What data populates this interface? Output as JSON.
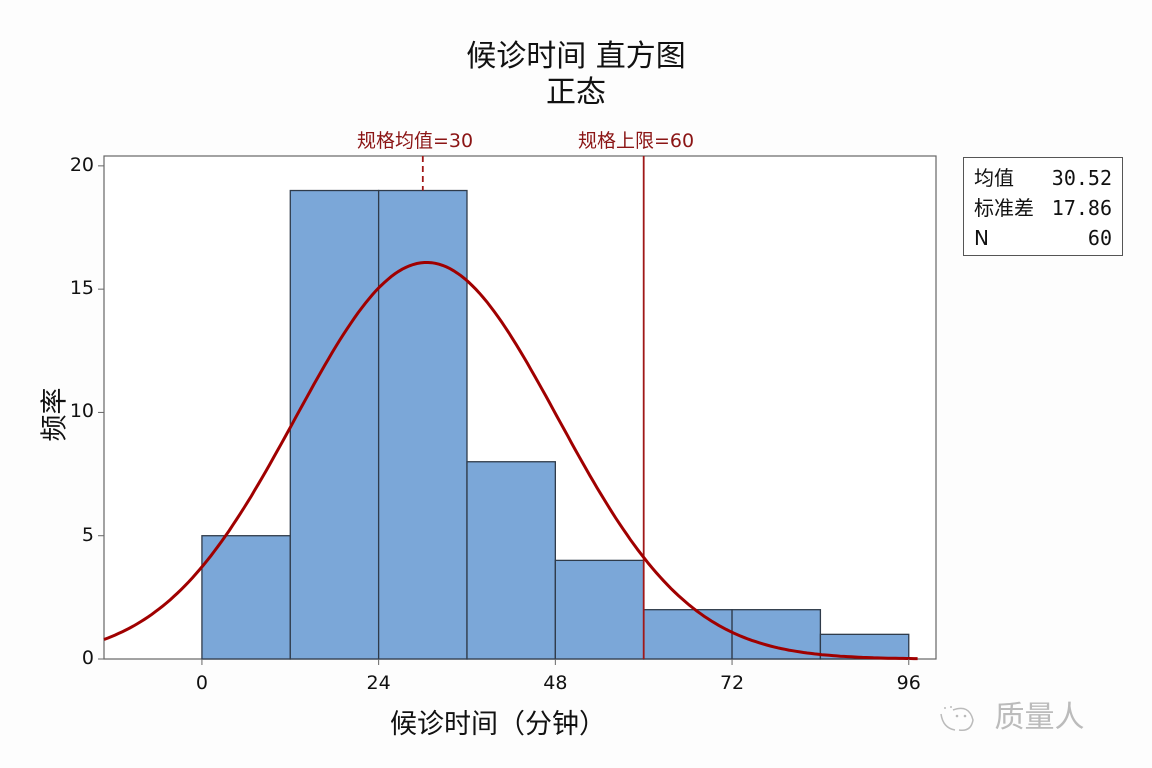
{
  "header": {
    "title": "候诊时间 直方图",
    "subtitle": "正态"
  },
  "spec_lines": [
    {
      "label": "规格均值=30",
      "value": 30,
      "style": "dashed"
    },
    {
      "label": "规格上限=60",
      "value": 60,
      "style": "solid"
    }
  ],
  "axes": {
    "xlabel": "候诊时间（分钟）",
    "ylabel": "频率",
    "xticks": [
      "0",
      "24",
      "48",
      "72",
      "96"
    ],
    "yticks": [
      "0",
      "5",
      "10",
      "15",
      "20"
    ]
  },
  "stats": {
    "rows": [
      {
        "key": "均值",
        "value": "30.52"
      },
      {
        "key": "标准差",
        "value": "17.86"
      },
      {
        "key": "N",
        "value": "60"
      }
    ]
  },
  "watermark": {
    "text": "质量人"
  },
  "colors": {
    "bar_fill": "#7ba7d8",
    "bar_edge": "#2f3b4a",
    "curve": "#a00000",
    "spec_line": "#a01818",
    "frame": "#666666"
  },
  "chart_data": {
    "type": "bar",
    "title": "候诊时间 直方图",
    "subtitle": "正态",
    "xlabel": "候诊时间（分钟）",
    "ylabel": "频率",
    "bin_edges": [
      0,
      12,
      24,
      36,
      48,
      60,
      72,
      84,
      96
    ],
    "categories": [
      "0-12",
      "12-24",
      "24-36",
      "36-48",
      "48-60",
      "60-72",
      "72-84",
      "84-96"
    ],
    "values": [
      5,
      19,
      19,
      8,
      4,
      2,
      2,
      1
    ],
    "xlim": [
      -13.3,
      99.7
    ],
    "ylim": [
      0,
      20.4
    ],
    "xticks": [
      0,
      24,
      48,
      72,
      96
    ],
    "yticks": [
      0,
      5,
      10,
      15,
      20
    ],
    "fit": {
      "distribution": "normal",
      "mean": 30.52,
      "stdev": 17.86,
      "n": 60
    },
    "reference_lines": [
      {
        "label": "规格均值=30",
        "x": 30,
        "style": "dashed"
      },
      {
        "label": "规格上限=60",
        "x": 60,
        "style": "solid"
      }
    ],
    "grid": false,
    "legend": "stats box top-right"
  }
}
